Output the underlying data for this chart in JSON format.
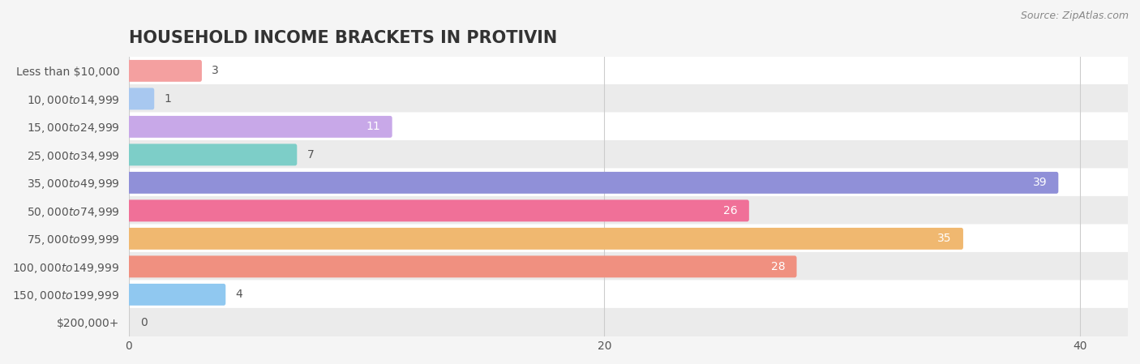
{
  "title": "HOUSEHOLD INCOME BRACKETS IN PROTIVIN",
  "source": "Source: ZipAtlas.com",
  "categories": [
    "Less than $10,000",
    "$10,000 to $14,999",
    "$15,000 to $24,999",
    "$25,000 to $34,999",
    "$35,000 to $49,999",
    "$50,000 to $74,999",
    "$75,000 to $99,999",
    "$100,000 to $149,999",
    "$150,000 to $199,999",
    "$200,000+"
  ],
  "values": [
    3,
    1,
    11,
    7,
    39,
    26,
    35,
    28,
    4,
    0
  ],
  "bar_colors": [
    "#F4A0A0",
    "#A8C8F0",
    "#C8A8E8",
    "#7DCEC8",
    "#9090D8",
    "#F07098",
    "#F0B870",
    "#F09080",
    "#90C8F0",
    "#D0A8D8"
  ],
  "row_colors": [
    "#ffffff",
    "#ebebeb"
  ],
  "background_color": "#f5f5f5",
  "xlim": [
    0,
    42
  ],
  "xticks": [
    0,
    20,
    40
  ],
  "bar_height": 0.62,
  "title_fontsize": 15,
  "label_fontsize": 10,
  "value_fontsize": 10
}
